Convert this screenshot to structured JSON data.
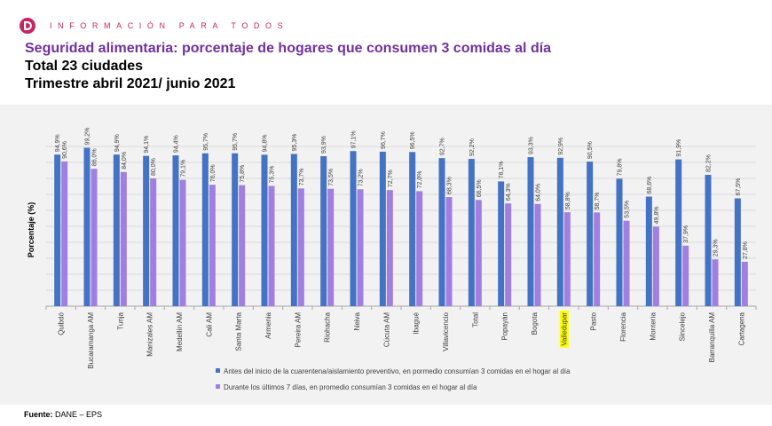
{
  "header": {
    "logo_icon": "dane-logo-icon",
    "tagline": "INFORMACIÓN PARA TODOS"
  },
  "colors": {
    "brand": "#C62660",
    "title": "#7030A0",
    "highlight": "#FFFF00"
  },
  "chart_data": {
    "type": "bar",
    "title": "Seguridad alimentaria: porcentaje de hogares que consumen 3 comidas al día",
    "subtitle": [
      "Total 23 ciudades",
      "Trimestre abril 2021/ junio 2021"
    ],
    "xlabel": "",
    "ylabel": "Porcentaje (%)",
    "ylim": [
      0,
      100
    ],
    "grid": true,
    "legend": "bottom",
    "value_labels": true,
    "highlighted_category": "Valledupar",
    "categories": [
      "Quibdó",
      "Bucaramanga AM",
      "Tunja",
      "Manizales AM",
      "Medellín AM",
      "Cali AM",
      "Santa Marta",
      "Armenia",
      "Pereira AM",
      "Riohacha",
      "Neiva",
      "Cúcuta AM",
      "Ibagué",
      "Villavicencio",
      "Total",
      "Popayán",
      "Bogota",
      "Valledupar",
      "Pasto",
      "Florencia",
      "Montería",
      "Sincelejo",
      "Barranquilla AM",
      "Cartagena"
    ],
    "series": [
      {
        "name": "Antes del inicio de la cuarentena/aislamiento preventivo, en pormedio consumían 3 comidas en el hogar al día",
        "color": "#4472C4",
        "values": [
          94.9,
          99.2,
          94.9,
          94.1,
          94.4,
          95.7,
          95.7,
          94.8,
          95.3,
          93.9,
          97.1,
          96.7,
          96.5,
          92.7,
          92.2,
          78.1,
          93.3,
          92.9,
          90.5,
          79.8,
          68.6,
          91.9,
          82.2,
          67.5
        ]
      },
      {
        "name": "Durante los últimos 7 días, en promedio consumían 3 comidas en el hogar al día",
        "color": "#A17FE0",
        "values": [
          90.6,
          86.0,
          84.0,
          80.0,
          79.1,
          76.0,
          75.8,
          75.3,
          73.7,
          73.5,
          73.2,
          72.7,
          72.0,
          68.3,
          66.5,
          64.3,
          64.0,
          58.8,
          58.7,
          53.5,
          49.8,
          37.9,
          29.3,
          27.8
        ]
      }
    ]
  },
  "footer": {
    "source_label": "Fuente:",
    "source_value": "DANE – EPS"
  }
}
